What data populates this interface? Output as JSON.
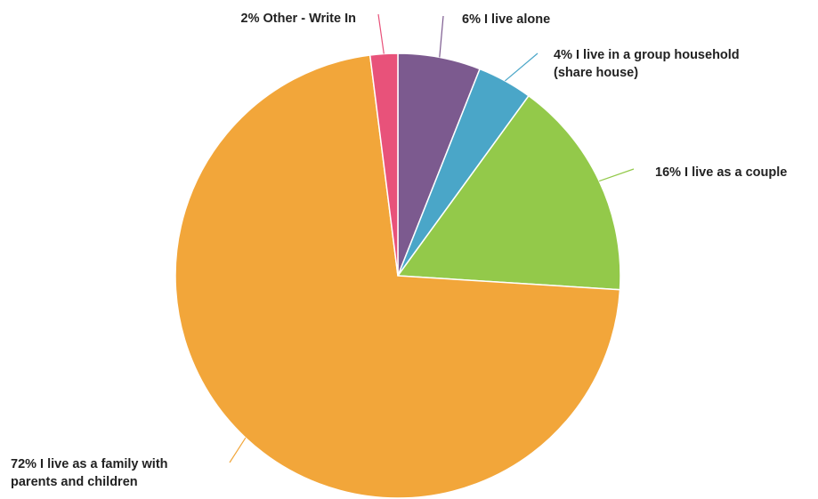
{
  "chart_data": {
    "type": "pie",
    "title": "",
    "slices": [
      {
        "label_lines": [
          "6% I live alone"
        ],
        "value": 6,
        "color": "#7c5a8f"
      },
      {
        "label_lines": [
          "4% I live in a group household",
          "(share house)"
        ],
        "value": 4,
        "color": "#4aa6c8"
      },
      {
        "label_lines": [
          "16% I live as a couple"
        ],
        "value": 16,
        "color": "#93c94a"
      },
      {
        "label_lines": [
          "72% I live as a family with",
          "parents and children"
        ],
        "value": 72,
        "color": "#f2a63a"
      },
      {
        "label_lines": [
          "2% Other - Write In"
        ],
        "value": 2,
        "color": "#e8527a"
      }
    ],
    "start_angle": "12 o'clock",
    "direction": "clockwise",
    "legend": "none",
    "labels": "outside with leader lines"
  }
}
